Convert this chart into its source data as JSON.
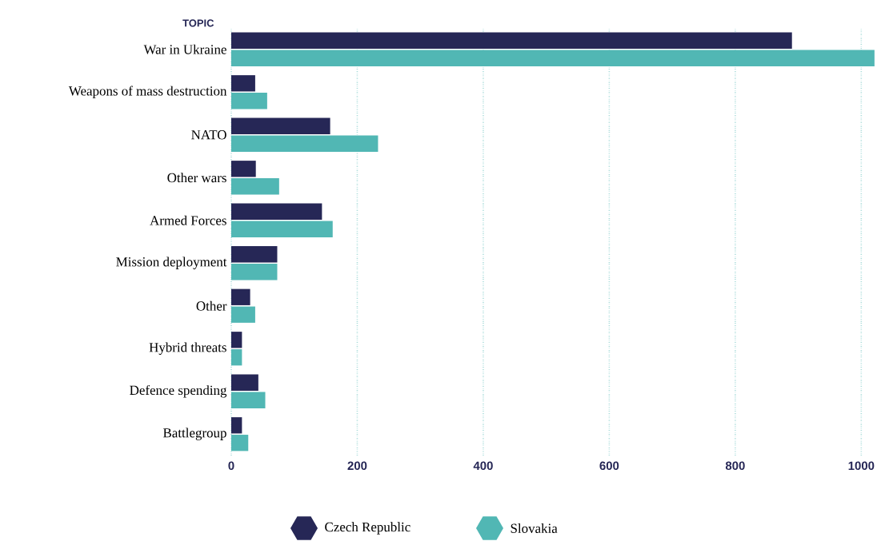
{
  "chart_data": {
    "type": "bar",
    "orientation": "horizontal",
    "ylabel": "TOPIC",
    "categories": [
      "War in Ukraine",
      "Weapons of mass destruction",
      "NATO",
      "Other wars",
      "Armed Forces",
      "Mission deployment",
      "Other",
      "Hybrid threats",
      "Defence spending",
      "Battlegroup"
    ],
    "series": [
      {
        "name": "Czech Republic",
        "color": "#262756",
        "values": [
          890,
          38,
          157,
          39,
          144,
          73,
          30,
          17,
          43,
          17
        ]
      },
      {
        "name": "Slovakia",
        "color": "#51b7b4",
        "values": [
          1021,
          57,
          233,
          76,
          161,
          73,
          38,
          17,
          54,
          27
        ]
      }
    ],
    "xlim": [
      0,
      1025
    ],
    "xticks": [
      0,
      200,
      400,
      600,
      800,
      1000
    ],
    "grid": "x",
    "legend": "bottom"
  }
}
